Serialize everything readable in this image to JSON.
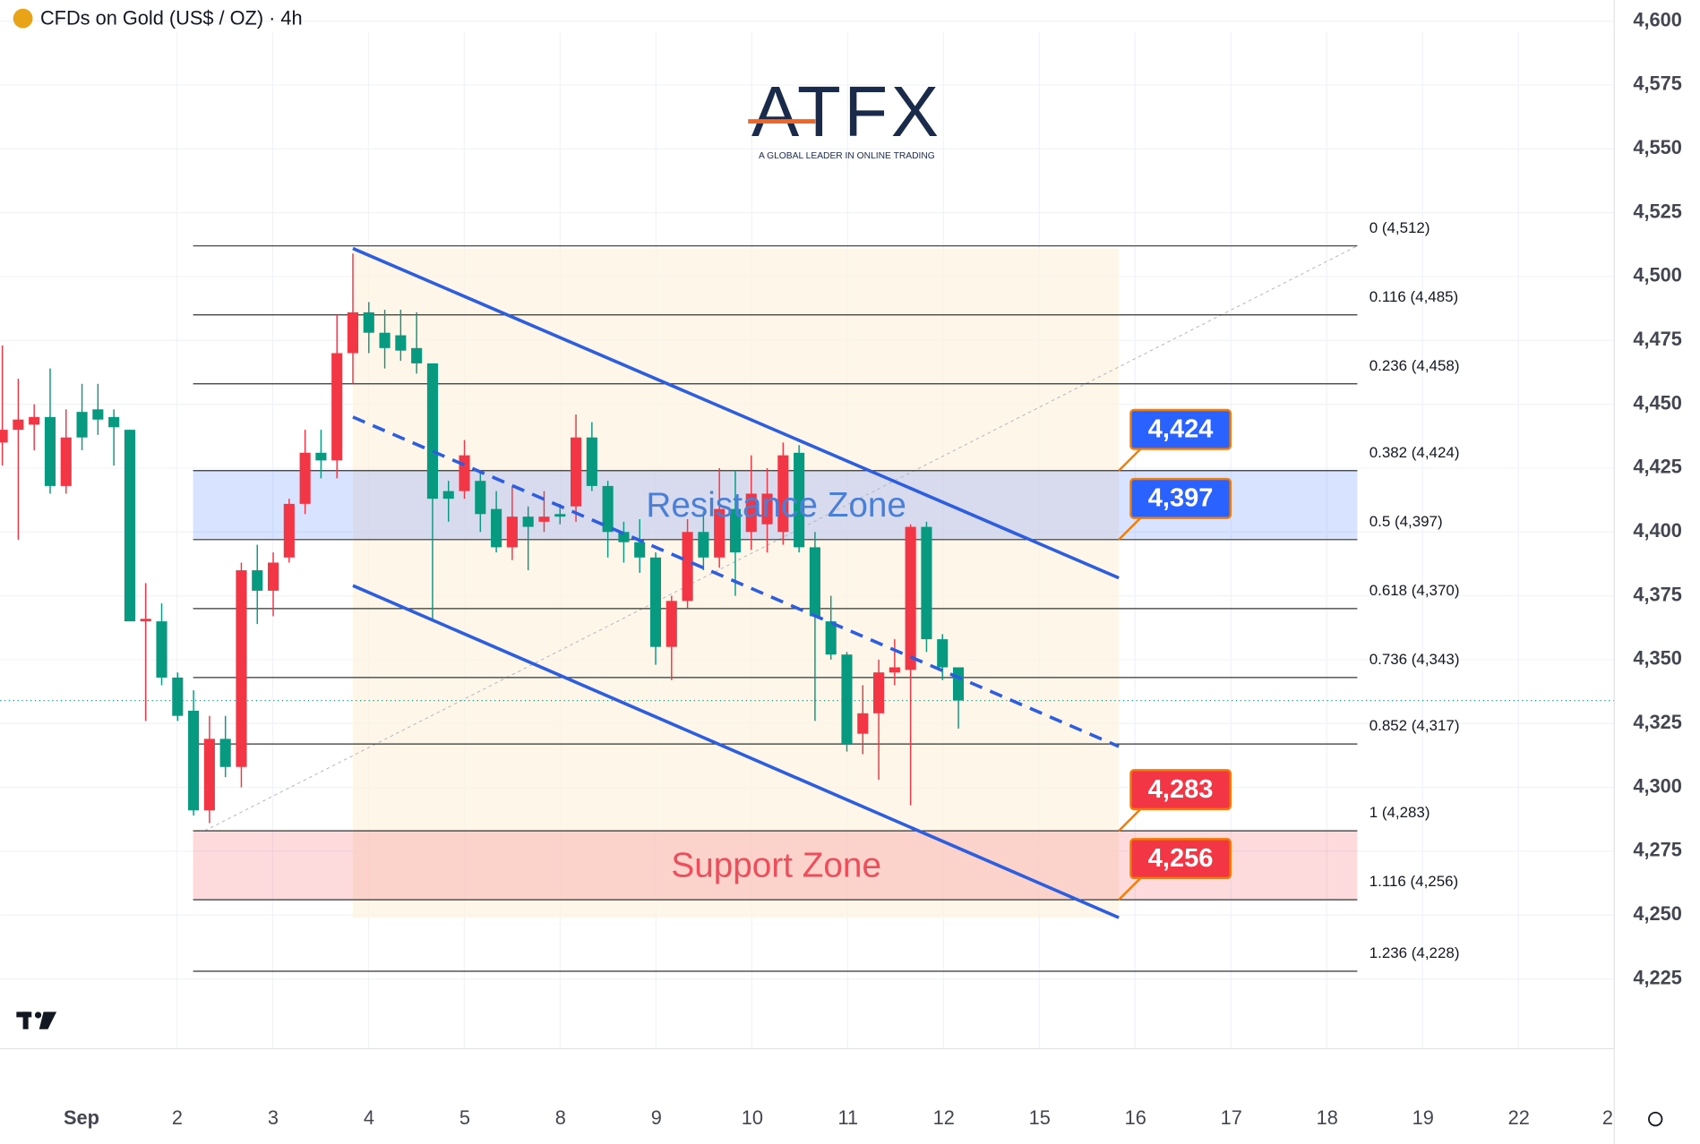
{
  "chart_data": {
    "type": "candlestick",
    "title": "CFDs on Gold (US$ / OZ) · 4h",
    "logo": "ATFX",
    "logo_tagline": "A GLOBAL LEADER IN ONLINE TRADING",
    "up_color": "#f23645",
    "down_color": "#089981",
    "open": [
      4435,
      4440,
      4442,
      4445,
      4418,
      4447,
      4448,
      4445,
      4440,
      4365,
      4365,
      4343,
      4330,
      4291,
      4319,
      4308,
      4385,
      4377,
      4390,
      4411,
      4431,
      4428,
      4470,
      4486,
      4478,
      4477,
      4472,
      4466,
      4416,
      4416,
      4420,
      4409,
      4394,
      4406,
      4404,
      4407,
      4410,
      4437,
      4418,
      4400,
      4396,
      4390,
      4355,
      4373,
      4400,
      4390,
      4409,
      4400,
      4403,
      4400,
      4431,
      4394,
      4365,
      4352,
      4321,
      4329,
      4345,
      4346,
      4402,
      4358,
      4347
    ],
    "high": [
      4473,
      4460,
      4450,
      4464,
      4448,
      4458,
      4458,
      4448,
      4440,
      4380,
      4372,
      4345,
      4338,
      4328,
      4328,
      4388,
      4395,
      4392,
      4413,
      4440,
      4440,
      4485,
      4509,
      4490,
      4487,
      4487,
      4486,
      4466,
      4420,
      4436,
      4424,
      4416,
      4418,
      4410,
      4416,
      4411,
      4446,
      4443,
      4420,
      4404,
      4405,
      4392,
      4375,
      4405,
      4408,
      4425,
      4424,
      4430,
      4425,
      4435,
      4434,
      4400,
      4375,
      4353,
      4340,
      4350,
      4358,
      4403,
      4404,
      4360,
      4347
    ],
    "low": [
      4426,
      4397,
      4432,
      4415,
      4415,
      4432,
      4438,
      4426,
      4365,
      4326,
      4340,
      4326,
      4289,
      4286,
      4304,
      4300,
      4364,
      4367,
      4388,
      4407,
      4421,
      4421,
      4458,
      4470,
      4464,
      4467,
      4462,
      4366,
      4404,
      4413,
      4400,
      4392,
      4389,
      4385,
      4400,
      4403,
      4404,
      4416,
      4390,
      4388,
      4384,
      4348,
      4342,
      4370,
      4385,
      4386,
      4375,
      4393,
      4392,
      4395,
      4392,
      4326,
      4350,
      4314,
      4313,
      4303,
      4340,
      4293,
      4353,
      4342,
      4323
    ],
    "close": [
      4440,
      4444,
      4445,
      4418,
      4437,
      4437,
      4444,
      4441,
      4365,
      4366,
      4343,
      4328,
      4291,
      4319,
      4308,
      4385,
      4377,
      4388,
      4411,
      4431,
      4428,
      4470,
      4486,
      4478,
      4472,
      4471,
      4466,
      4413,
      4413,
      4430,
      4407,
      4394,
      4406,
      4402,
      4406,
      4406,
      4437,
      4418,
      4400,
      4396,
      4390,
      4355,
      4373,
      4400,
      4390,
      4409,
      4392,
      4415,
      4415,
      4430,
      4394,
      4367,
      4352,
      4317,
      4329,
      4345,
      4347,
      4402,
      4358,
      4347,
      4334
    ],
    "x_labels": [
      "Sep",
      "2",
      "3",
      "4",
      "5",
      "8",
      "9",
      "10",
      "11",
      "12",
      "15",
      "16",
      "17",
      "18",
      "19",
      "22",
      "2"
    ],
    "ylim": [
      4196,
      4607
    ],
    "yticks": [
      {
        "value": 4225,
        "label": "4,225"
      },
      {
        "value": 4250,
        "label": "4,250"
      },
      {
        "value": 4275,
        "label": "4,275"
      },
      {
        "value": 4300,
        "label": "4,300"
      },
      {
        "value": 4325,
        "label": "4,325"
      },
      {
        "value": 4350,
        "label": "4,350"
      },
      {
        "value": 4375,
        "label": "4,375"
      },
      {
        "value": 4400,
        "label": "4,400"
      },
      {
        "value": 4425,
        "label": "4,425"
      },
      {
        "value": 4450,
        "label": "4,450"
      },
      {
        "value": 4475,
        "label": "4,475"
      },
      {
        "value": 4500,
        "label": "4,500"
      },
      {
        "value": 4525,
        "label": "4,525"
      },
      {
        "value": 4550,
        "label": "4,550"
      },
      {
        "value": 4575,
        "label": "4,575"
      },
      {
        "value": 4600,
        "label": "4,600"
      }
    ],
    "grid": true,
    "fib_levels": [
      {
        "value": 4512,
        "label": "0 (4,512)"
      },
      {
        "value": 4485,
        "label": "0.116 (4,485)"
      },
      {
        "value": 4458,
        "label": "0.236 (4,458)"
      },
      {
        "value": 4424,
        "label": "0.382 (4,424)"
      },
      {
        "value": 4397,
        "label": "0.5 (4,397)"
      },
      {
        "value": 4370,
        "label": "0.618 (4,370)"
      },
      {
        "value": 4343,
        "label": "0.736 (4,343)"
      },
      {
        "value": 4317,
        "label": "0.852 (4,317)"
      },
      {
        "value": 4283,
        "label": "1 (4,283)"
      },
      {
        "value": 4256,
        "label": "1.116 (4,256)"
      },
      {
        "value": 4228,
        "label": "1.236 (4,228)"
      }
    ],
    "zones": [
      {
        "label": "Resistance Zone",
        "from": 4397,
        "to": 4424,
        "color": "#2962ff",
        "text_color": "#4a7fd8"
      },
      {
        "label": "Support Zone",
        "from": 4256,
        "to": 4283,
        "color": "#f23645",
        "text_color": "#ef4d5c"
      }
    ],
    "channel": {
      "color": "#2e5ee0",
      "upper": [
        4511,
        4382
      ],
      "middle": [
        4445,
        4316
      ],
      "lower": [
        4379,
        4249
      ]
    },
    "callouts": [
      {
        "value": 4424,
        "label": "4,424",
        "color": "#2962ff"
      },
      {
        "value": 4397,
        "label": "4,397",
        "color": "#2962ff"
      },
      {
        "value": 4283,
        "label": "4,283",
        "color": "#f23645"
      },
      {
        "value": 4256,
        "label": "4,256",
        "color": "#f23645"
      }
    ]
  }
}
